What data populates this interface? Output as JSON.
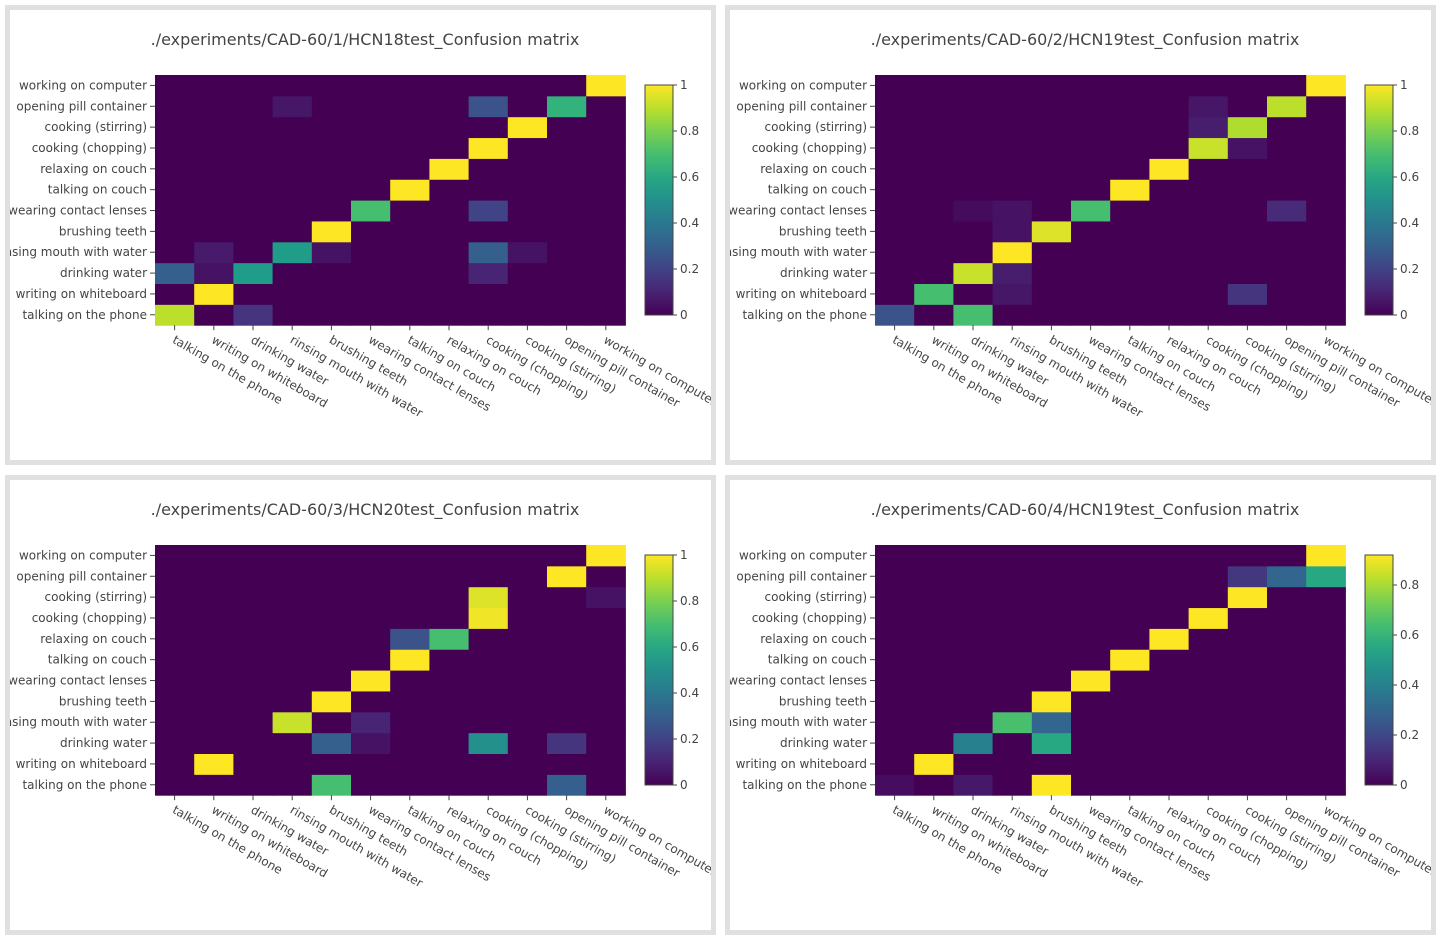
{
  "labels": [
    "talking on the phone",
    "writing on whiteboard",
    "drinking water",
    "rinsing mouth with water",
    "brushing teeth",
    "wearing contact lenses",
    "talking on couch",
    "relaxing on couch",
    "cooking (chopping)",
    "cooking (stirring)",
    "opening pill container",
    "working on computer"
  ],
  "chart_data": [
    {
      "type": "heatmap",
      "title": "./experiments/CAD-60/1/HCN18test_Confusion matrix",
      "zmin": 0,
      "zmax": 1,
      "colorbar_ticks": [
        0,
        0.2,
        0.4,
        0.6,
        0.8,
        1
      ],
      "z": [
        [
          0.9,
          0,
          0.15,
          0,
          0,
          0,
          0,
          0,
          0,
          0,
          0,
          0
        ],
        [
          0,
          1,
          0,
          0,
          0,
          0,
          0,
          0,
          0,
          0,
          0,
          0
        ],
        [
          0.3,
          0.05,
          0.55,
          0,
          0,
          0,
          0,
          0,
          0.1,
          0,
          0,
          0
        ],
        [
          0,
          0.07,
          0,
          0.55,
          0.05,
          0,
          0,
          0,
          0.3,
          0.05,
          0,
          0
        ],
        [
          0,
          0,
          0,
          0,
          1,
          0,
          0,
          0,
          0,
          0,
          0,
          0
        ],
        [
          0,
          0,
          0,
          0,
          0,
          0.7,
          0,
          0,
          0.2,
          0,
          0,
          0
        ],
        [
          0,
          0,
          0,
          0,
          0,
          0,
          1,
          0,
          0,
          0,
          0,
          0
        ],
        [
          0,
          0,
          0,
          0,
          0,
          0,
          0,
          1,
          0,
          0,
          0,
          0
        ],
        [
          0,
          0,
          0,
          0,
          0,
          0,
          0,
          0,
          1,
          0,
          0,
          0
        ],
        [
          0,
          0,
          0,
          0,
          0,
          0,
          0,
          0,
          0,
          1,
          0,
          0
        ],
        [
          0,
          0,
          0,
          0.06,
          0,
          0,
          0,
          0,
          0.25,
          0,
          0.65,
          0
        ],
        [
          0,
          0,
          0,
          0,
          0,
          0,
          0,
          0,
          0,
          0,
          0,
          1
        ]
      ]
    },
    {
      "type": "heatmap",
      "title": "./experiments/CAD-60/2/HCN19test_Confusion matrix",
      "zmin": 0,
      "zmax": 1,
      "colorbar_ticks": [
        0,
        0.2,
        0.4,
        0.6,
        0.8,
        1
      ],
      "z": [
        [
          0.25,
          0,
          0.7,
          0,
          0,
          0,
          0,
          0,
          0,
          0,
          0,
          0
        ],
        [
          0,
          0.7,
          0,
          0.06,
          0,
          0,
          0,
          0,
          0,
          0.15,
          0,
          0
        ],
        [
          0,
          0,
          0.92,
          0.08,
          0,
          0,
          0,
          0,
          0,
          0,
          0,
          0
        ],
        [
          0,
          0,
          0,
          1,
          0,
          0,
          0,
          0,
          0,
          0,
          0,
          0
        ],
        [
          0,
          0,
          0,
          0.05,
          0.95,
          0,
          0,
          0,
          0,
          0,
          0,
          0
        ],
        [
          0,
          0,
          0.03,
          0.05,
          0,
          0.7,
          0,
          0,
          0,
          0,
          0.12,
          0
        ],
        [
          0,
          0,
          0,
          0,
          0,
          0,
          1,
          0,
          0,
          0,
          0,
          0
        ],
        [
          0,
          0,
          0,
          0,
          0,
          0,
          0,
          1,
          0,
          0,
          0,
          0
        ],
        [
          0,
          0,
          0,
          0,
          0,
          0,
          0,
          0,
          0.92,
          0.05,
          0,
          0
        ],
        [
          0,
          0,
          0,
          0,
          0,
          0,
          0,
          0,
          0.08,
          0.88,
          0,
          0
        ],
        [
          0,
          0,
          0,
          0,
          0,
          0,
          0,
          0,
          0.06,
          0,
          0.9,
          0
        ],
        [
          0,
          0,
          0,
          0,
          0,
          0,
          0,
          0,
          0,
          0,
          0,
          1
        ]
      ]
    },
    {
      "type": "heatmap",
      "title": "./experiments/CAD-60/3/HCN20test_Confusion matrix",
      "zmin": 0,
      "zmax": 1,
      "colorbar_ticks": [
        0,
        0.2,
        0.4,
        0.6,
        0.8,
        1
      ],
      "z": [
        [
          0,
          0,
          0,
          0,
          0.7,
          0,
          0,
          0,
          0,
          0,
          0.3,
          0
        ],
        [
          0,
          1,
          0,
          0,
          0,
          0,
          0,
          0,
          0,
          0,
          0,
          0
        ],
        [
          0,
          0,
          0,
          0,
          0.3,
          0.05,
          0,
          0,
          0.5,
          0,
          0.15,
          0
        ],
        [
          0,
          0,
          0,
          0.92,
          0,
          0.1,
          0,
          0,
          0,
          0,
          0,
          0
        ],
        [
          0,
          0,
          0,
          0,
          1,
          0,
          0,
          0,
          0,
          0,
          0,
          0
        ],
        [
          0,
          0,
          0,
          0,
          0,
          1,
          0,
          0,
          0,
          0,
          0,
          0
        ],
        [
          0,
          0,
          0,
          0,
          0,
          0,
          1,
          0,
          0,
          0,
          0,
          0
        ],
        [
          0,
          0,
          0,
          0,
          0,
          0,
          0.25,
          0.7,
          0,
          0,
          0,
          0
        ],
        [
          0,
          0,
          0,
          0,
          0,
          0,
          0,
          0,
          0.98,
          0,
          0,
          0
        ],
        [
          0,
          0,
          0,
          0,
          0,
          0,
          0,
          0,
          0.95,
          0,
          0,
          0.05
        ],
        [
          0,
          0,
          0,
          0,
          0,
          0,
          0,
          0,
          0,
          0,
          1,
          0
        ],
        [
          0,
          0,
          0,
          0,
          0,
          0,
          0,
          0,
          0,
          0,
          0,
          1
        ]
      ]
    },
    {
      "type": "heatmap",
      "title": "./experiments/CAD-60/4/HCN19test_Confusion matrix",
      "zmin": 0,
      "zmax": 0.92,
      "colorbar_ticks": [
        0,
        0.2,
        0.4,
        0.6,
        0.8
      ],
      "z": [
        [
          0.03,
          0,
          0.06,
          0,
          0.92,
          0,
          0,
          0,
          0,
          0,
          0,
          0
        ],
        [
          0,
          0.92,
          0,
          0,
          0,
          0,
          0,
          0,
          0,
          0,
          0,
          0
        ],
        [
          0,
          0,
          0.4,
          0,
          0.55,
          0,
          0,
          0,
          0,
          0,
          0,
          0
        ],
        [
          0,
          0,
          0,
          0.65,
          0.3,
          0,
          0,
          0,
          0,
          0,
          0,
          0
        ],
        [
          0,
          0,
          0,
          0,
          0.92,
          0,
          0,
          0,
          0,
          0,
          0,
          0
        ],
        [
          0,
          0,
          0,
          0,
          0,
          0.92,
          0,
          0,
          0,
          0,
          0,
          0
        ],
        [
          0,
          0,
          0,
          0,
          0,
          0,
          0.92,
          0,
          0,
          0,
          0,
          0
        ],
        [
          0,
          0,
          0,
          0,
          0,
          0,
          0,
          0.92,
          0,
          0,
          0,
          0
        ],
        [
          0,
          0,
          0,
          0,
          0,
          0,
          0,
          0,
          0.92,
          0,
          0,
          0
        ],
        [
          0,
          0,
          0,
          0,
          0,
          0,
          0,
          0,
          0,
          0.92,
          0,
          0
        ],
        [
          0,
          0,
          0,
          0,
          0,
          0,
          0,
          0,
          0,
          0.15,
          0.3,
          0.55
        ],
        [
          0,
          0,
          0,
          0,
          0,
          0,
          0,
          0,
          0,
          0,
          0,
          0.92
        ]
      ]
    }
  ]
}
